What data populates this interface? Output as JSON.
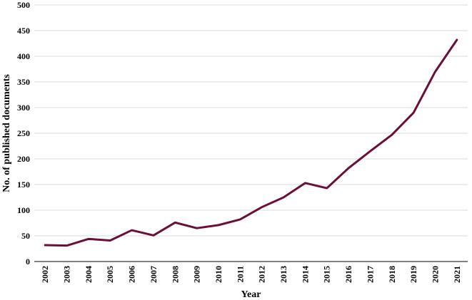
{
  "chart_data": {
    "type": "line",
    "title": "",
    "xlabel": "Year",
    "ylabel": "No. of published  documents",
    "ylim": [
      0,
      500
    ],
    "yticks": [
      0,
      50,
      100,
      150,
      200,
      250,
      300,
      350,
      400,
      450,
      500
    ],
    "grid": true,
    "legend": "none",
    "x": [
      "2002",
      "2003",
      "2004",
      "2005",
      "2006",
      "2007",
      "2008",
      "2009",
      "2010",
      "2011",
      "2012",
      "2013",
      "2014",
      "2015",
      "2016",
      "2017",
      "2018",
      "2019",
      "2020",
      "2021"
    ],
    "series": [
      {
        "color": "#6b0f3a",
        "values": [
          32,
          31,
          44,
          41,
          61,
          51,
          76,
          65,
          71,
          82,
          106,
          125,
          153,
          143,
          182,
          215,
          247,
          290,
          370,
          432
        ]
      }
    ]
  }
}
